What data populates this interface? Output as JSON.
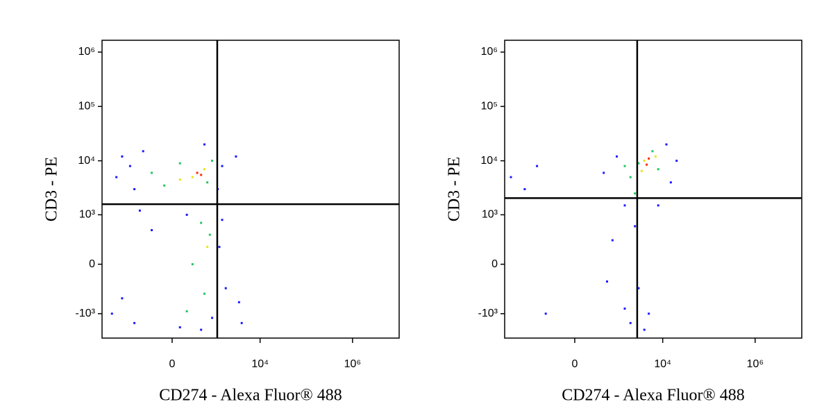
{
  "chart_data": [
    {
      "type": "scatter",
      "scale": "biexponential",
      "x_label": "CD274 - Alexa Fluor® 488",
      "y_label": "CD3 - PE",
      "xlim": [
        -4100,
        10200000
      ],
      "ylim": [
        -2850,
        1650000
      ],
      "xticks": [
        0,
        {
          "value": 10000,
          "label": "10⁴"
        },
        {
          "value": 1000000,
          "label": "10⁶"
        }
      ],
      "yticks": [
        {
          "value": -1000,
          "label": "-10³"
        },
        0,
        {
          "value": 1000,
          "label": "10³"
        },
        {
          "value": 10000,
          "label": "10⁴"
        },
        {
          "value": 100000,
          "label": "10⁵"
        },
        {
          "value": 1000000,
          "label": "10⁶"
        }
      ],
      "quadrant": {
        "x": 1170,
        "y": 1580
      },
      "series": [
        {
          "color": "#1a1aff",
          "x": [
            -2000,
            -1500,
            -800,
            -500,
            1500,
            1200,
            3000,
            600,
            -1000,
            -1500,
            -800,
            -300,
            100,
            900,
            1300,
            1500,
            -2500,
            500,
            -600,
            1800,
            3500,
            4000,
            200
          ],
          "y": [
            5000,
            12000,
            3000,
            15000,
            8000,
            3000,
            12000,
            20000,
            8000,
            -500,
            -1500,
            500,
            -1800,
            -1200,
            200,
            800,
            -1000,
            -2000,
            1200,
            -300,
            -600,
            -1500,
            1000
          ]
        },
        {
          "color": "#22c55e",
          "x": [
            -300,
            100,
            700,
            900,
            -100,
            300,
            600,
            800,
            200,
            500
          ],
          "y": [
            6000,
            9000,
            4000,
            10000,
            3500,
            0,
            -400,
            400,
            -900,
            700
          ]
        },
        {
          "color": "#e5e517",
          "x": [
            300,
            600,
            100,
            700
          ],
          "y": [
            5000,
            7000,
            4500,
            200
          ]
        },
        {
          "color": "#ff2a00",
          "x": [
            400,
            500
          ],
          "y": [
            6000,
            5500
          ]
        }
      ]
    },
    {
      "type": "scatter",
      "scale": "biexponential",
      "x_label": "CD274 - Alexa Fluor® 488",
      "y_label": "CD3 - PE",
      "xlim": [
        -4100,
        10200000
      ],
      "ylim": [
        -2850,
        1650000
      ],
      "xticks": [
        0,
        {
          "value": 10000,
          "label": "10⁴"
        },
        {
          "value": 1000000,
          "label": "10⁶"
        }
      ],
      "yticks": [
        {
          "value": -1000,
          "label": "-10³"
        },
        0,
        {
          "value": 1000,
          "label": "10³"
        },
        {
          "value": 10000,
          "label": "10⁴"
        },
        {
          "value": 100000,
          "label": "10⁵"
        },
        {
          "value": 1000000,
          "label": "10⁶"
        }
      ],
      "quadrant": {
        "x": 2800,
        "y": 2050
      },
      "series": [
        {
          "color": "#1a1aff",
          "x": [
            -3000,
            -1500,
            -800,
            500,
            1000,
            1500,
            2000,
            3000,
            800,
            2500,
            5000,
            8000,
            15000,
            20000,
            1500,
            -500,
            4000,
            12000,
            600
          ],
          "y": [
            5000,
            3000,
            8000,
            6000,
            12000,
            -800,
            -1500,
            -300,
            300,
            600,
            -1000,
            1500,
            4000,
            10000,
            1500,
            -1000,
            -2000,
            20000,
            -200
          ]
        },
        {
          "color": "#22c55e",
          "x": [
            2000,
            3000,
            6000,
            1500,
            8000,
            2500
          ],
          "y": [
            5000,
            9000,
            15000,
            8000,
            7000,
            2500
          ]
        },
        {
          "color": "#e5e517",
          "x": [
            4000,
            3500,
            7000
          ],
          "y": [
            10000,
            6500,
            12000
          ]
        },
        {
          "color": "#ff2a00",
          "x": [
            5000,
            4500
          ],
          "y": [
            11000,
            8500
          ]
        }
      ]
    }
  ]
}
